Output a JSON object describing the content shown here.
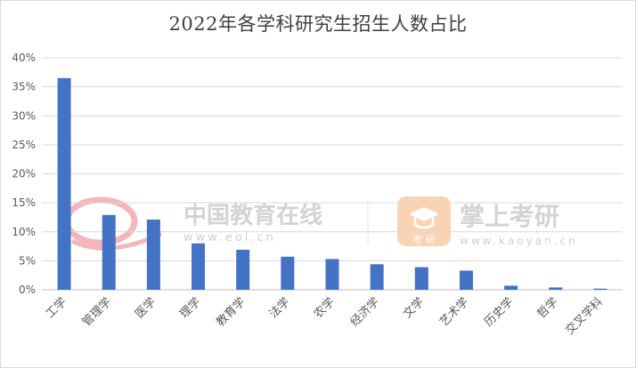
{
  "watermarks": {
    "left_brand": "中国教育在线",
    "left_url": "www.eol.cn",
    "right_brand": "掌上考研",
    "right_url": "www.kaoyan.cn",
    "right_logo_text": "考 研",
    "accent_red": "#e0303a",
    "accent_orange": "#f5a05a"
  },
  "chart_data": {
    "type": "bar",
    "title": "2022年各学科研究生招生人数占比",
    "categories": [
      "工学",
      "管理学",
      "医学",
      "理学",
      "教育学",
      "法学",
      "农学",
      "经济学",
      "文学",
      "艺术学",
      "历史学",
      "哲学",
      "交叉学科"
    ],
    "values": [
      36.5,
      12.9,
      12.1,
      8.0,
      6.9,
      5.7,
      5.3,
      4.4,
      3.9,
      3.3,
      0.7,
      0.4,
      0.2
    ],
    "y_unit": "%",
    "ylim": [
      0,
      40
    ],
    "yticks": [
      "0%",
      "5%",
      "10%",
      "15%",
      "20%",
      "25%",
      "30%",
      "35%",
      "40%"
    ],
    "bar_color": "#4472c4",
    "grid": true,
    "legend": "none"
  }
}
